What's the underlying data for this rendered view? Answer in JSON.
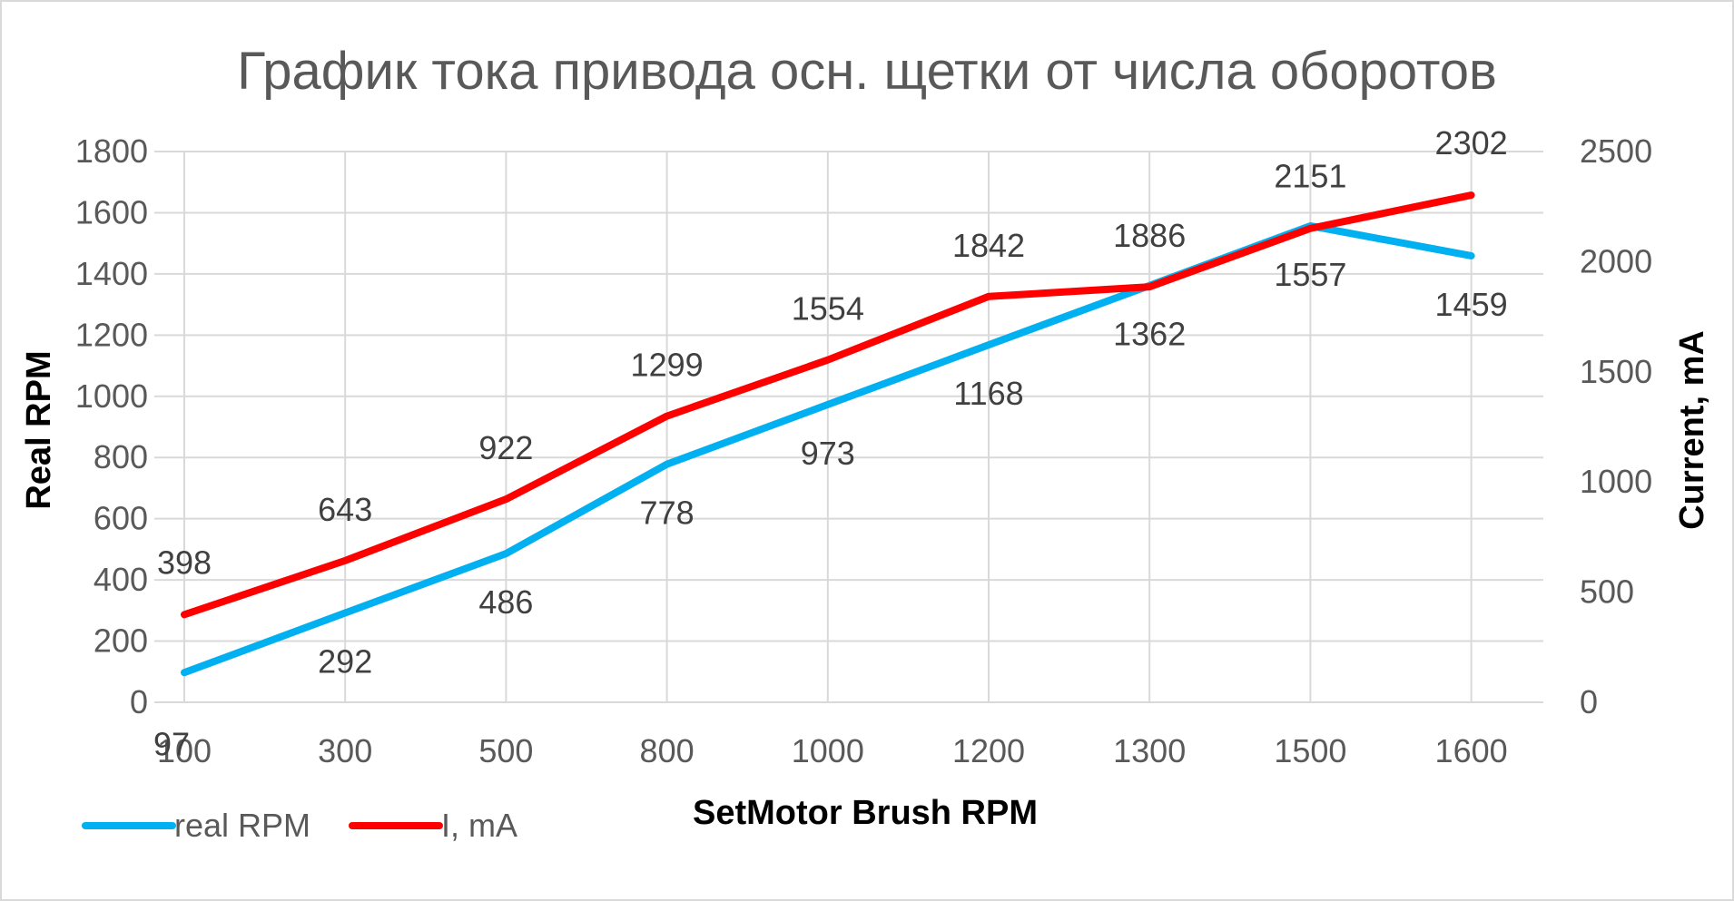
{
  "chart_data": {
    "type": "line",
    "title": "График тока привода осн. щетки от числа оборотов",
    "xlabel": "SetMotor Brush RPM",
    "ylabel": "Real RPM",
    "y2label": "Current, mA",
    "categories": [
      "100",
      "300",
      "500",
      "800",
      "1000",
      "1200",
      "1300",
      "1500",
      "1600"
    ],
    "ylim": [
      0,
      1800
    ],
    "y_ticks": [
      0,
      200,
      400,
      600,
      800,
      1000,
      1200,
      1400,
      1600,
      1800
    ],
    "y2lim": [
      0,
      2500
    ],
    "y2_ticks": [
      0,
      500,
      1000,
      1500,
      2000,
      2500
    ],
    "grid": true,
    "legend_position": "bottom-left",
    "series": [
      {
        "name": "real RPM",
        "axis": "left",
        "color": "#00b0f0",
        "values": [
          97,
          292,
          486,
          778,
          973,
          1168,
          1362,
          1557,
          1459
        ]
      },
      {
        "name": "I, mA",
        "axis": "right",
        "color": "#ff0000",
        "values": [
          398,
          643,
          922,
          1299,
          1554,
          1842,
          1886,
          2151,
          2302
        ]
      }
    ]
  }
}
